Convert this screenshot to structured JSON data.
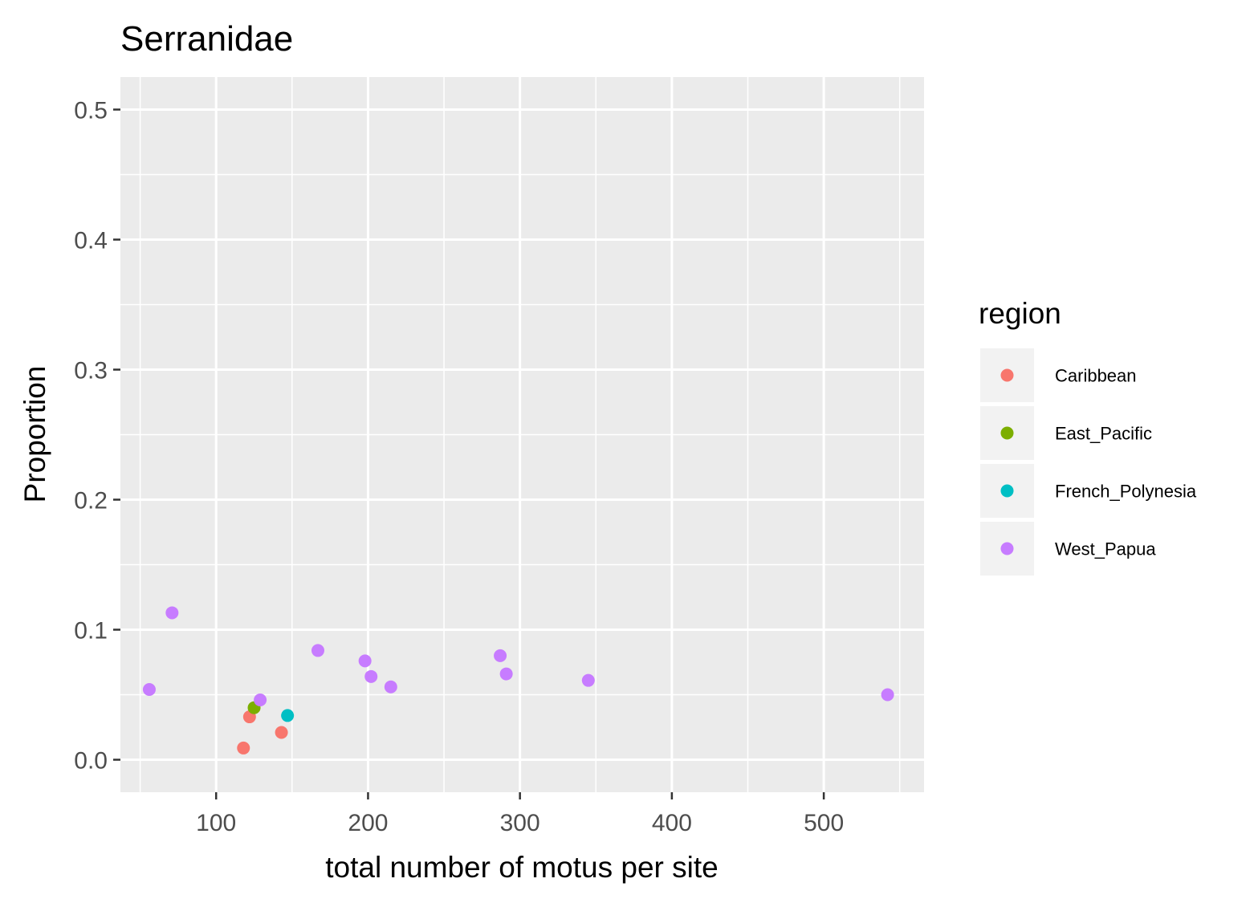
{
  "chart_data": {
    "type": "scatter",
    "title": "Serranidae",
    "xlabel": "total number of motus per site",
    "ylabel": "Proportion",
    "xlim": [
      37,
      566
    ],
    "ylim": [
      -0.025,
      0.525
    ],
    "x_ticks": [
      100,
      200,
      300,
      400,
      500
    ],
    "x_tick_labels": [
      "100",
      "200",
      "300",
      "400",
      "500"
    ],
    "y_ticks": [
      0.0,
      0.1,
      0.2,
      0.3,
      0.4,
      0.5
    ],
    "y_tick_labels": [
      "0.0",
      "0.1",
      "0.2",
      "0.3",
      "0.4",
      "0.5"
    ],
    "grid": true,
    "legend_title": "region",
    "legend_position": "right",
    "series": [
      {
        "name": "Caribbean",
        "color": "#F8766D",
        "points": [
          [
            118,
            0.009
          ],
          [
            122,
            0.033
          ],
          [
            143,
            0.021
          ]
        ]
      },
      {
        "name": "East_Pacific",
        "color": "#7CAE00",
        "points": [
          [
            125,
            0.04
          ]
        ]
      },
      {
        "name": "French_Polynesia",
        "color": "#00BFC4",
        "points": [
          [
            147,
            0.034
          ]
        ]
      },
      {
        "name": "West_Papua",
        "color": "#C77CFF",
        "points": [
          [
            56,
            0.054
          ],
          [
            71,
            0.113
          ],
          [
            129,
            0.046
          ],
          [
            167,
            0.084
          ],
          [
            198,
            0.076
          ],
          [
            202,
            0.064
          ],
          [
            215,
            0.056
          ],
          [
            287,
            0.08
          ],
          [
            291,
            0.066
          ],
          [
            345,
            0.061
          ],
          [
            542,
            0.05
          ]
        ]
      }
    ]
  }
}
